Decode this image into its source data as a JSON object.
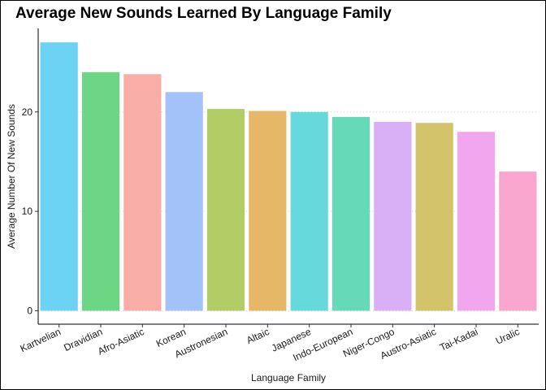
{
  "chart_data": {
    "type": "bar",
    "title": "Average New Sounds Learned By Language Family",
    "xlabel": "Language Family",
    "ylabel": "Average Number Of New Sounds",
    "categories": [
      "Kartvelian",
      "Dravidian",
      "Afro-Asiatic",
      "Korean",
      "Austronesian",
      "Altaic",
      "Japanese",
      "Indo-European",
      "Niger-Congo",
      "Austro-Asiatic",
      "Tai-Kadai",
      "Uralic"
    ],
    "values": [
      27.0,
      24.0,
      23.8,
      22.0,
      20.3,
      20.1,
      20.0,
      19.5,
      19.0,
      18.9,
      18.0,
      14.0
    ],
    "colors": [
      "#6dd3f5",
      "#6dd685",
      "#f8ada7",
      "#a3c2f9",
      "#b2cc66",
      "#e6b766",
      "#66d9dc",
      "#66d9b9",
      "#d9b0f6",
      "#d3c36a",
      "#f2a6ee",
      "#f8a6cd"
    ],
    "yticks": [
      0,
      10,
      20
    ],
    "ylim": [
      -1.35,
      28.4
    ],
    "grid": "horizontal-dotted",
    "legend": "none"
  }
}
